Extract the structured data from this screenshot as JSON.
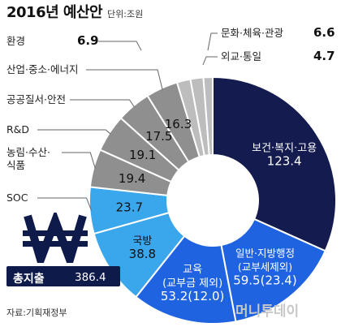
{
  "title": "2016년 예산안",
  "unit": "단위:조원",
  "source": "자료:기획재정부",
  "watermark": "머니투데이",
  "total": {
    "label": "총지출",
    "value": "386.4"
  },
  "colors": {
    "navy": "#141b4e",
    "blue": "#1f63e0",
    "sky": "#3aa6ec",
    "gray": "#8f8f8f",
    "lightgray": "#bdbdbd",
    "outer_label_line": "#666666"
  },
  "chart_data": {
    "type": "pie",
    "donut": true,
    "total": 386.4,
    "slices": [
      {
        "label": "보건·복지·고용",
        "value": 123.4,
        "value_text": "123.4",
        "color": "#141b4e"
      },
      {
        "label": "일반·지방행정\n(교부세제외)",
        "value": 59.5,
        "value_text": "59.5(23.4)",
        "color": "#1f63e0"
      },
      {
        "label": "교육\n(교부금 제외)",
        "value": 53.2,
        "value_text": "53.2(12.0)",
        "color": "#1f63e0"
      },
      {
        "label": "국방",
        "value": 38.8,
        "value_text": "38.8",
        "color": "#3aa6ec"
      },
      {
        "label": "SOC",
        "value": 23.7,
        "value_text": "23.7",
        "color": "#3aa6ec"
      },
      {
        "label": "농림·수산·식품",
        "value": 19.4,
        "value_text": "19.4",
        "color": "#8f8f8f"
      },
      {
        "label": "R&D",
        "value": 19.1,
        "value_text": "19.1",
        "color": "#8f8f8f"
      },
      {
        "label": "공공질서·안전",
        "value": 17.5,
        "value_text": "17.5",
        "color": "#8f8f8f"
      },
      {
        "label": "산업·중소·에너지",
        "value": 16.3,
        "value_text": "16.3",
        "color": "#8f8f8f"
      },
      {
        "label": "환경",
        "value": 6.9,
        "value_text": "6.9",
        "color": "#bdbdbd"
      },
      {
        "label": "문화·체육·관광",
        "value": 6.6,
        "value_text": "6.6",
        "color": "#bdbdbd"
      },
      {
        "label": "외교·통일",
        "value": 4.7,
        "value_text": "4.7",
        "color": "#bdbdbd"
      }
    ]
  }
}
